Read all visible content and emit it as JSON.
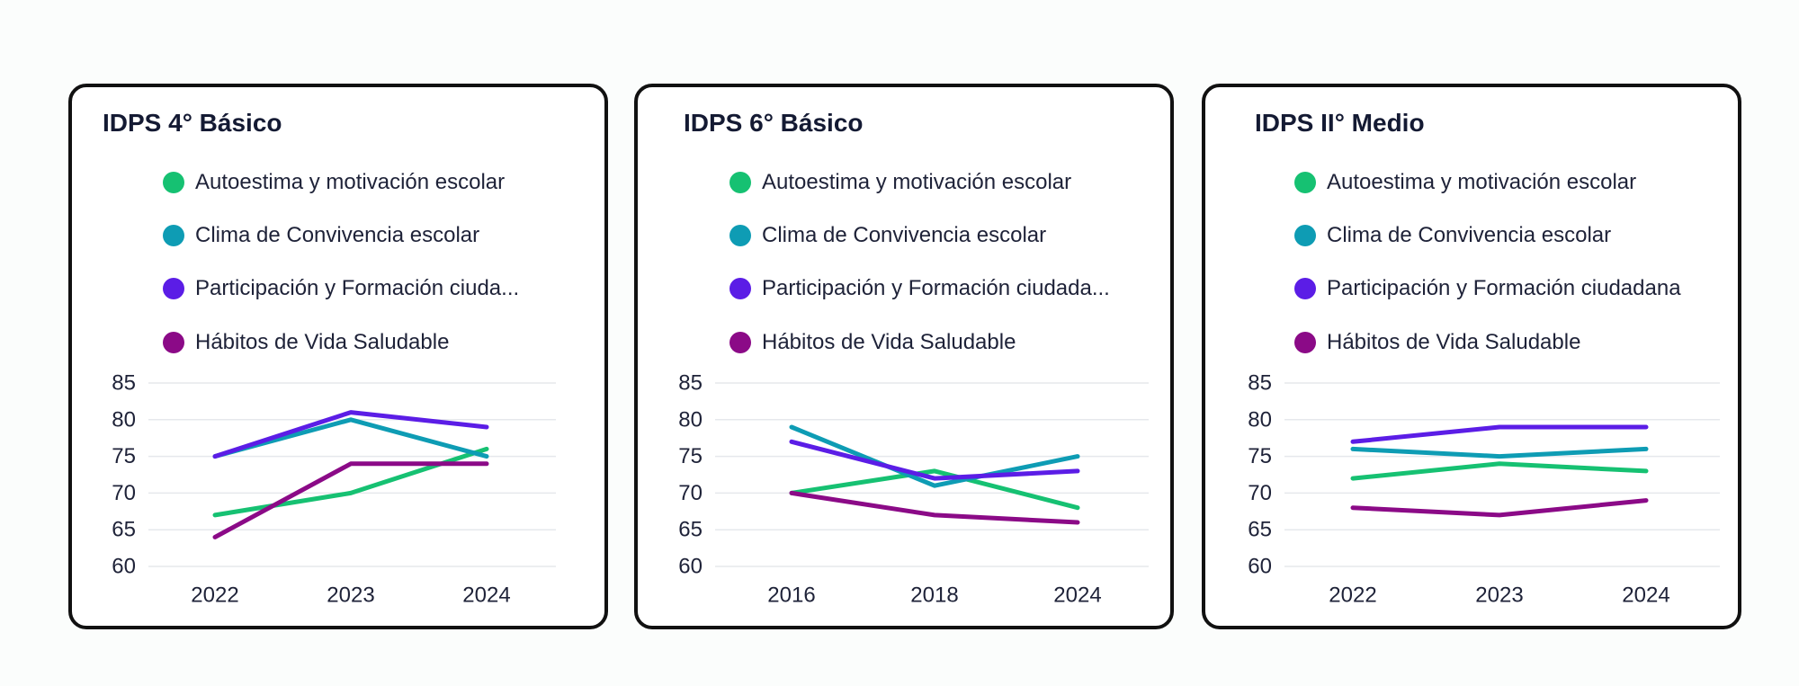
{
  "chart_data": [
    {
      "type": "line",
      "title": "IDPS 4° Básico",
      "categories": [
        "2022",
        "2023",
        "2024"
      ],
      "ylim": [
        60,
        85
      ],
      "yticks": [
        85,
        80,
        75,
        70,
        65,
        60
      ],
      "grid": true,
      "legend_position": "top",
      "series": [
        {
          "name": "Autoestima y motivación escolar",
          "legend_label": "Autoestima y motivación escolar",
          "color": "#16c172",
          "values": [
            67,
            70,
            76
          ]
        },
        {
          "name": "Clima de Convivencia escolar",
          "legend_label": "Clima de Convivencia escolar",
          "color": "#0e9cb4",
          "values": [
            75,
            80,
            75
          ]
        },
        {
          "name": "Participación y Formación ciudadana",
          "legend_label": "Participación y Formación ciuda...",
          "color": "#5b1de6",
          "values": [
            75,
            81,
            79
          ]
        },
        {
          "name": "Hábitos de Vida Saludable",
          "legend_label": "Hábitos de Vida Saludable",
          "color": "#8b0a87",
          "values": [
            64,
            74,
            74
          ]
        }
      ]
    },
    {
      "type": "line",
      "title": "IDPS 6° Básico",
      "categories": [
        "2016",
        "2018",
        "2024"
      ],
      "ylim": [
        60,
        85
      ],
      "yticks": [
        85,
        80,
        75,
        70,
        65,
        60
      ],
      "grid": true,
      "legend_position": "top",
      "series": [
        {
          "name": "Autoestima y motivación escolar",
          "legend_label": "Autoestima y motivación escolar",
          "color": "#16c172",
          "values": [
            70,
            73,
            68
          ]
        },
        {
          "name": "Clima de Convivencia escolar",
          "legend_label": "Clima de Convivencia escolar",
          "color": "#0e9cb4",
          "values": [
            79,
            71,
            75
          ]
        },
        {
          "name": "Participación y Formación ciudadana",
          "legend_label": "Participación y Formación ciudada...",
          "color": "#5b1de6",
          "values": [
            77,
            72,
            73
          ]
        },
        {
          "name": "Hábitos de Vida Saludable",
          "legend_label": "Hábitos de Vida Saludable",
          "color": "#8b0a87",
          "values": [
            70,
            67,
            66
          ]
        }
      ]
    },
    {
      "type": "line",
      "title": "IDPS II° Medio",
      "categories": [
        "2022",
        "2023",
        "2024"
      ],
      "ylim": [
        60,
        85
      ],
      "yticks": [
        85,
        80,
        75,
        70,
        65,
        60
      ],
      "grid": true,
      "legend_position": "top",
      "series": [
        {
          "name": "Autoestima y motivación escolar",
          "legend_label": "Autoestima y motivación escolar",
          "color": "#16c172",
          "values": [
            72,
            74,
            73
          ]
        },
        {
          "name": "Clima de Convivencia escolar",
          "legend_label": "Clima de Convivencia escolar",
          "color": "#0e9cb4",
          "values": [
            76,
            75,
            76
          ]
        },
        {
          "name": "Participación y Formación ciudadana",
          "legend_label": "Participación y Formación ciudadana",
          "color": "#5b1de6",
          "values": [
            77,
            79,
            79
          ]
        },
        {
          "name": "Hábitos de Vida Saludable",
          "legend_label": "Hábitos de Vida Saludable",
          "color": "#8b0a87",
          "values": [
            68,
            67,
            69
          ]
        }
      ]
    }
  ]
}
